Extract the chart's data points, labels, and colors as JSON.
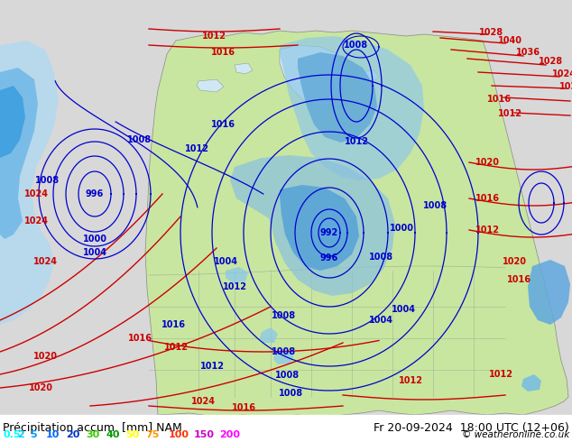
{
  "title_left": "Précipitation accum. [mm] NAM",
  "title_right": "Fr 20-09-2024  18:00 UTC (12+06)",
  "copyright": "© weatheronline.co.uk",
  "legend_values": [
    "0.5",
    "2",
    "5",
    "10",
    "20",
    "30",
    "40",
    "50",
    "75",
    "100",
    "150",
    "200"
  ],
  "legend_colors": [
    "#00ffff",
    "#00ccff",
    "#0099ff",
    "#0066ff",
    "#0033cc",
    "#33cc00",
    "#009900",
    "#ffff00",
    "#ff9900",
    "#ff3300",
    "#cc00cc",
    "#ff00ff"
  ],
  "bg_color": "#d8d8d8",
  "land_color": "#c8e6a0",
  "ocean_color": "#d0e8f4",
  "blue_isobar": "#0000cc",
  "red_isobar": "#cc0000",
  "gray_border": "#888888",
  "label_fontsize": 8,
  "title_fontsize": 9,
  "isobar_fontsize": 7,
  "fig_width": 6.34,
  "fig_height": 4.9,
  "dpi": 100
}
